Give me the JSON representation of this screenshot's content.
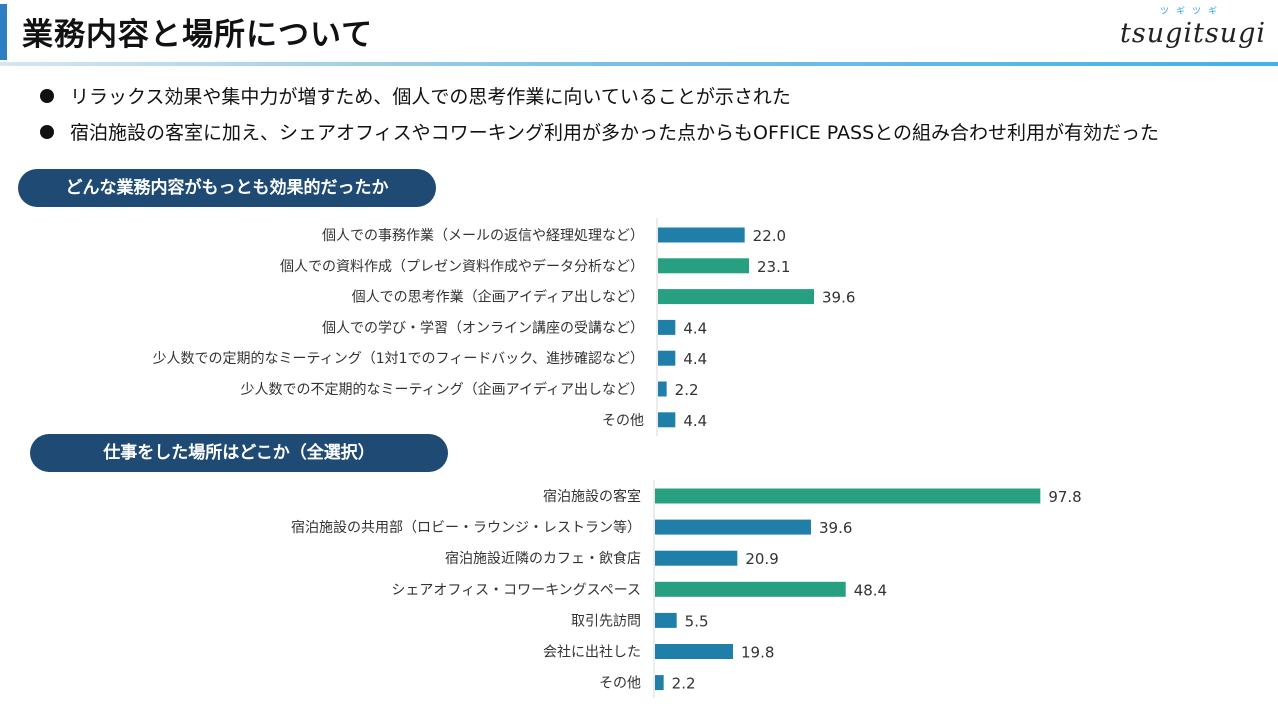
{
  "header": {
    "title": "業務内容と場所について",
    "logo_kana": "ツギツギ",
    "logo_word": "tsugitsugi"
  },
  "bullets": [
    "リラックス効果や集中力が増すため、個人での思考作業に向いていることが示された",
    "宿泊施設の客室に加え、シェアオフィスやコワーキング利用が多かった点からもOFFICE PASSとの組み合わせ利用が有効だった"
  ],
  "colors": {
    "blue": "#1f7fa8",
    "green": "#26a081",
    "navy": "#1e4a74"
  },
  "chart_data": [
    {
      "type": "bar",
      "orientation": "horizontal",
      "title": "どんな業務内容がもっとも効果的だったか",
      "categories": [
        "個人での事務作業（メールの返信や経理処理など）",
        "個人での資料作成（プレゼン資料作成やデータ分析など）",
        "個人での思考作業（企画アイディア出しなど）",
        "個人での学び・学習（オンライン講座の受講など）",
        "少人数での定期的なミーティング（1対1でのフィードバック、進捗確認など）",
        "少人数での不定期的なミーティング（企画アイディア出しなど）",
        "その他"
      ],
      "values": [
        22.0,
        23.1,
        39.6,
        4.4,
        4.4,
        2.2,
        4.4
      ],
      "value_labels": [
        "22.0",
        "23.1",
        "39.6",
        "4.4",
        "4.4",
        "2.2",
        "4.4"
      ],
      "bar_colors": [
        "#1f7fa8",
        "#26a081",
        "#26a081",
        "#1f7fa8",
        "#1f7fa8",
        "#1f7fa8",
        "#1f7fa8"
      ],
      "xlim": [
        0,
        100
      ],
      "grid": false
    },
    {
      "type": "bar",
      "orientation": "horizontal",
      "title": "仕事をした場所はどこか（全選択）",
      "categories": [
        "宿泊施設の客室",
        "宿泊施設の共用部（ロビー・ラウンジ・レストラン等）",
        "宿泊施設近隣のカフェ・飲食店",
        "シェアオフィス・コワーキングスペース",
        "取引先訪問",
        "会社に出社した",
        "その他"
      ],
      "values": [
        97.8,
        39.6,
        20.9,
        48.4,
        5.5,
        19.8,
        2.2
      ],
      "value_labels": [
        "97.8",
        "39.6",
        "20.9",
        "48.4",
        "5.5",
        "19.8",
        "2.2"
      ],
      "bar_colors": [
        "#26a081",
        "#1f7fa8",
        "#1f7fa8",
        "#26a081",
        "#1f7fa8",
        "#1f7fa8",
        "#1f7fa8"
      ],
      "xlim": [
        0,
        100
      ],
      "grid": false
    }
  ]
}
